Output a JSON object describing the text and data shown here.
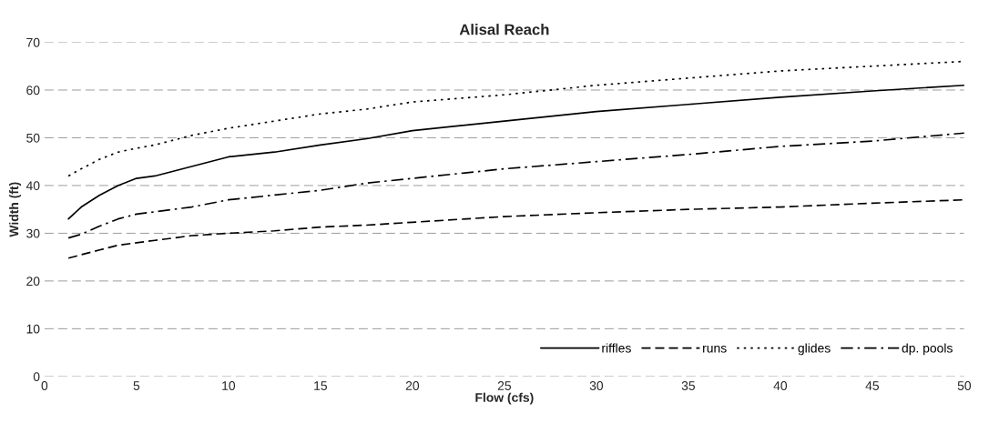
{
  "chart_data": {
    "type": "line",
    "title": "Alisal Reach",
    "xlabel": "Flow (cfs)",
    "ylabel": "Width (ft)",
    "x": [
      1.3,
      2,
      3,
      4,
      5,
      6,
      8,
      10,
      12.5,
      15,
      17.5,
      20,
      25,
      30,
      35,
      40,
      45,
      50
    ],
    "series": [
      {
        "name": "riffles",
        "color": "#000000",
        "line_style": "solid",
        "values": [
          33,
          35.5,
          38,
          40,
          41.5,
          42,
          44,
          46,
          47,
          48.5,
          49.8,
          51.5,
          53.5,
          55.5,
          57,
          58.5,
          59.8,
          61
        ]
      },
      {
        "name": "runs",
        "color": "#000000",
        "line_style": "dashed",
        "values": [
          24.8,
          25.5,
          26.5,
          27.5,
          28,
          28.5,
          29.5,
          30,
          30.5,
          31.3,
          31.7,
          32.3,
          33.5,
          34.3,
          35,
          35.5,
          36.3,
          37
        ]
      },
      {
        "name": "glides",
        "color": "#000000",
        "line_style": "dotted",
        "values": [
          42,
          43.5,
          45.5,
          47,
          47.8,
          48.5,
          50.5,
          52,
          53.5,
          55,
          56,
          57.5,
          59,
          61,
          62.5,
          64,
          65,
          66
        ]
      },
      {
        "name": "dp. pools",
        "color": "#000000",
        "line_style": "dashdot",
        "values": [
          29,
          29.8,
          31.5,
          33,
          34,
          34.5,
          35.5,
          37,
          38,
          39,
          40.5,
          41.5,
          43.5,
          45,
          46.5,
          48.2,
          49.3,
          51
        ]
      }
    ],
    "xlim": [
      0,
      50
    ],
    "xticks": [
      0,
      5,
      10,
      15,
      20,
      25,
      30,
      35,
      40,
      45,
      50
    ],
    "ylim": [
      0,
      70
    ],
    "yticks": [
      0,
      10,
      20,
      30,
      40,
      50,
      60,
      70
    ],
    "grid": "y",
    "legend": "bottom right",
    "marker": "none"
  }
}
